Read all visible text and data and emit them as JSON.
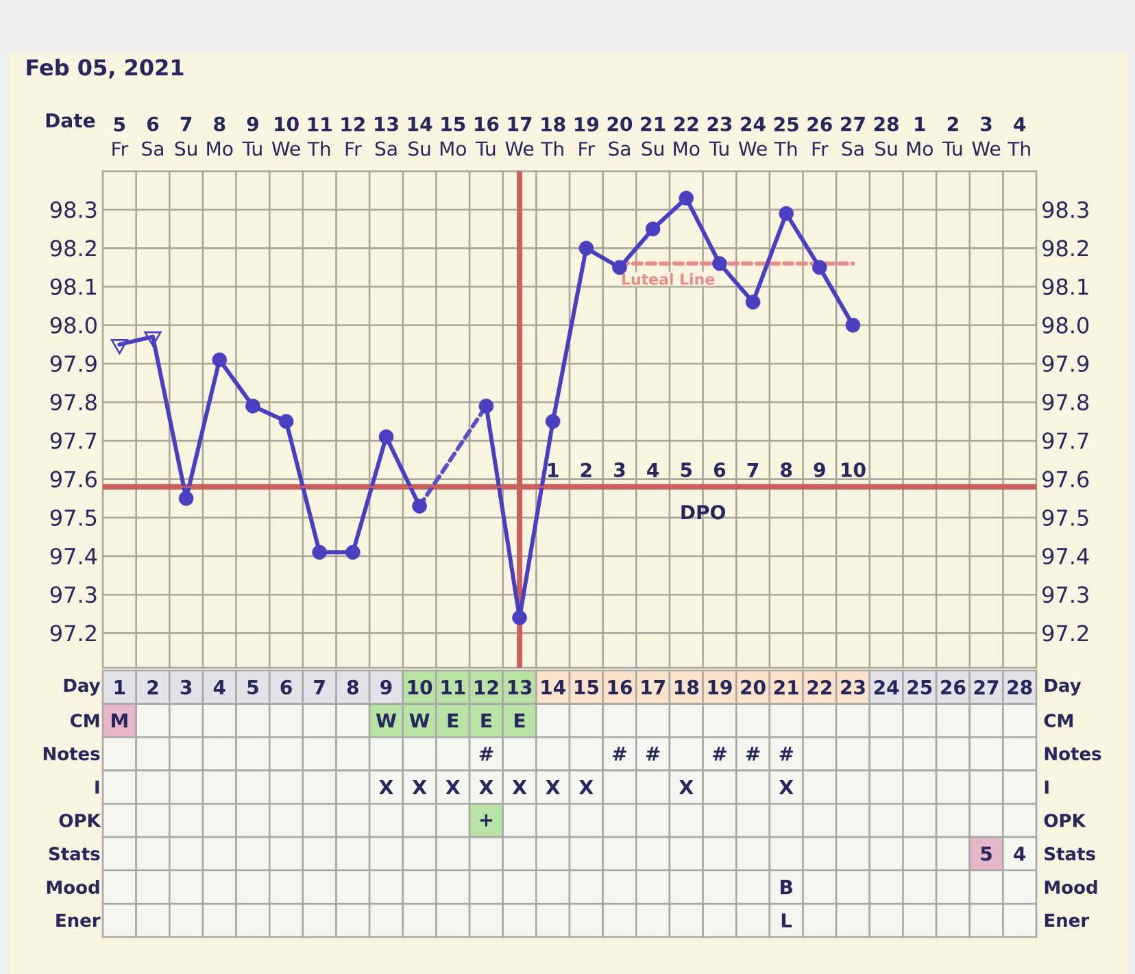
{
  "chart_data": [
    {
      "type": "line",
      "title": "Feb 05, 2021",
      "xlabel": "Date",
      "x": [
        "2021-02-05",
        "2021-02-06",
        "2021-02-07",
        "2021-02-08",
        "2021-02-09",
        "2021-02-10",
        "2021-02-11",
        "2021-02-12",
        "2021-02-13",
        "2021-02-14",
        "2021-02-15",
        "2021-02-16",
        "2021-02-17",
        "2021-02-18",
        "2021-02-19",
        "2021-02-20",
        "2021-02-21",
        "2021-02-22",
        "2021-02-23",
        "2021-02-24",
        "2021-02-25",
        "2021-02-26",
        "2021-02-27"
      ],
      "xlim": [
        "2021-02-04T12:00",
        "2021-03-04T12:00"
      ],
      "xticks": [
        {
          "value": "2021-02-05",
          "label": "**5** Fr"
        },
        {
          "value": "2021-02-06",
          "label": "**6** Sa"
        },
        {
          "value": "2021-02-07",
          "label": "**7** Su"
        },
        {
          "value": "2021-02-08",
          "label": "**8** Mo"
        },
        {
          "value": "2021-02-09",
          "label": "**9** Tu"
        },
        {
          "value": "2021-02-10",
          "label": "**10** We"
        },
        {
          "value": "2021-02-11",
          "label": "**11** Th"
        },
        {
          "value": "2021-02-12",
          "label": "**12** Fr"
        },
        {
          "value": "2021-02-13",
          "label": "**13** Sa"
        },
        {
          "value": "2021-02-14",
          "label": "**14** Su"
        },
        {
          "value": "2021-02-15",
          "label": "**15** Mo"
        },
        {
          "value": "2021-02-16",
          "label": "**16** Tu"
        },
        {
          "value": "2021-02-17",
          "label": "**17** We"
        },
        {
          "value": "2021-02-18",
          "label": "**18** Th"
        },
        {
          "value": "2021-02-19",
          "label": "**19** Fr"
        },
        {
          "value": "2021-02-20",
          "label": "**20** Sa"
        },
        {
          "value": "2021-02-21",
          "label": "**21** Su"
        },
        {
          "value": "2021-02-22",
          "label": "**22** Mo"
        },
        {
          "value": "2021-02-23",
          "label": "**23** Tu"
        },
        {
          "value": "2021-02-24",
          "label": "**24** We"
        },
        {
          "value": "2021-02-25",
          "label": "**25** Th"
        },
        {
          "value": "2021-02-26",
          "label": "**26** Fr"
        },
        {
          "value": "2021-02-27",
          "label": "**27** Sa"
        },
        {
          "value": "2021-02-28",
          "label": "**28** Su"
        },
        {
          "value": "2021-03-01",
          "label": "**1** Mo"
        },
        {
          "value": "2021-03-02",
          "label": "**2** Tu"
        },
        {
          "value": "2021-03-03",
          "label": "**3** We"
        },
        {
          "value": "2021-03-04",
          "label": "**4** Th"
        }
      ],
      "x2label": "DPO",
      "x2lim": [
        -12.5,
        15.5
      ],
      "x2ticks": [
        1,
        2,
        3,
        4,
        5,
        6,
        7,
        8,
        9,
        10
      ],
      "ylim": [
        97.11,
        98.4
      ],
      "yticks": [
        97.2,
        97.3,
        97.4,
        97.5,
        97.6,
        97.7,
        97.8,
        97.9,
        {
          "value": 98,
          "label": "98.0"
        },
        98.1,
        98.2,
        98.3
      ],
      "y2lim": [
        97.11,
        98.4
      ],
      "y2ticks": [
        97.2,
        97.3,
        97.4,
        97.5,
        97.6,
        97.7,
        97.8,
        97.9,
        {
          "value": 98,
          "label": "98.0"
        },
        98.1,
        98.2,
        98.3
      ],
      "grid": true,
      "series": [
        {
          "name": "Luteal Line",
          "type": "line",
          "color": "#e88c8a",
          "line_style": "dashed",
          "x": [
            "2021-02-20",
            "2021-02-27"
          ],
          "values": [
            98.16,
            98.16
          ]
        },
        {
          "type": "line",
          "color": "#4a3fbf",
          "values": [
            97.95,
            97.97,
            97.55,
            97.91,
            97.79,
            97.75,
            97.41,
            97.41,
            97.71,
            97.53,
            null,
            97.79,
            97.24,
            97.75,
            98.2,
            98.15,
            98.25,
            98.33,
            98.16,
            98.06,
            98.29,
            98.15,
            98.0
          ]
        },
        {
          "type": "line",
          "color": "#5a50c4",
          "line_style": "dashed",
          "x": [
            "2021-02-14",
            "2021-02-16"
          ],
          "values": [
            97.53,
            97.79
          ]
        },
        {
          "type": "scatter",
          "color": "#4a3fbf",
          "marker": "triangle",
          "x": [
            "2021-02-05",
            "2021-02-06"
          ],
          "values": [
            97.95,
            97.97
          ]
        },
        {
          "type": "scatter",
          "color": "#4a3fbf",
          "marker": "circle",
          "values": [
            null,
            null,
            97.55,
            97.91,
            97.79,
            97.75,
            97.41,
            97.41,
            97.71,
            97.53,
            null,
            97.79,
            97.24,
            97.75,
            98.2,
            98.15,
            98.25,
            98.33,
            98.16,
            98.06,
            98.29,
            98.15,
            98.0
          ]
        }
      ],
      "ref_lines": [
        {
          "axis": "y",
          "value": 97.58,
          "color": "#c9615e"
        },
        {
          "axis": "x",
          "value": "2021-02-17",
          "color": "#c9615e"
        }
      ]
    },
    {
      "type": "heatmap",
      "categories": [
        null,
        null,
        null,
        null,
        null,
        null,
        null,
        null,
        null,
        null,
        null,
        null,
        null,
        null,
        null,
        null,
        null,
        null,
        null,
        null,
        null,
        null,
        null,
        null,
        null,
        null,
        null,
        null
      ],
      "y_categories": [
        "Day",
        "CM",
        "Notes",
        "I",
        "OPK",
        "Stats",
        "Mood",
        "Ener"
      ],
      "y2_categories": [
        "Day",
        "CM",
        "Notes",
        "I",
        "OPK",
        "Stats",
        "Mood",
        "Ener"
      ],
      "color": "#f6f6f1",
      "cells": [
        [
          "1",
          "2",
          "3",
          "4",
          "5",
          "6",
          "7",
          "8",
          "9",
          "10",
          "11",
          "12",
          "13",
          "14",
          "15",
          "16",
          "17",
          "18",
          "19",
          "20",
          "21",
          "22",
          "23",
          "24",
          "25",
          "26",
          "27",
          "28"
        ],
        [
          "M",
          null,
          null,
          null,
          null,
          null,
          null,
          null,
          "W",
          "W",
          "E",
          "E",
          "E",
          null,
          null,
          null,
          null,
          null,
          null,
          null,
          null,
          null,
          null,
          null,
          null,
          null,
          null,
          null
        ],
        [
          null,
          null,
          null,
          null,
          null,
          null,
          null,
          null,
          null,
          null,
          null,
          "#",
          null,
          null,
          null,
          "#",
          "#",
          null,
          "#",
          "#",
          "#",
          null,
          null,
          null,
          null,
          null,
          null,
          null
        ],
        [
          null,
          null,
          null,
          null,
          null,
          null,
          null,
          null,
          "X",
          "X",
          "X",
          "X",
          "X",
          "X",
          "X",
          null,
          null,
          "X",
          null,
          null,
          "X",
          null,
          null,
          null,
          null,
          null,
          null,
          null
        ],
        [
          null,
          null,
          null,
          null,
          null,
          null,
          null,
          null,
          null,
          null,
          null,
          "+",
          null,
          null,
          null,
          null,
          null,
          null,
          null,
          null,
          null,
          null,
          null,
          null,
          null,
          null,
          null,
          null
        ],
        [
          null,
          null,
          null,
          null,
          null,
          null,
          null,
          null,
          null,
          null,
          null,
          null,
          null,
          null,
          null,
          null,
          null,
          null,
          null,
          null,
          null,
          null,
          null,
          null,
          null,
          null,
          "5",
          "4"
        ],
        [
          null,
          null,
          null,
          null,
          null,
          null,
          null,
          null,
          null,
          null,
          null,
          null,
          null,
          null,
          null,
          null,
          null,
          null,
          null,
          null,
          "B",
          null,
          null,
          null,
          null,
          null,
          null,
          null
        ],
        [
          null,
          null,
          null,
          null,
          null,
          null,
          null,
          null,
          null,
          null,
          null,
          null,
          null,
          null,
          null,
          null,
          null,
          null,
          null,
          null,
          "L",
          null,
          null,
          null,
          null,
          null,
          null,
          null
        ]
      ],
      "colors": [
        [
          "#e2e2e8",
          "#e2e2e8",
          "#e2e2e8",
          "#e2e2e8",
          "#e2e2e8",
          "#e2e2e8",
          "#e2e2e8",
          "#e2e2e8",
          "#e2e2e8",
          "#b8e3a4",
          "#b8e3a4",
          "#b8e3a4",
          "#b8e3a4",
          "#fbe3cb",
          "#fbe3cb",
          "#fbe3cb",
          "#fbe3cb",
          "#fbe3cb",
          "#fbe3cb",
          "#fbe3cb",
          "#fbe3cb",
          "#fbe3cb",
          "#fbe3cb",
          "#e2e2e8",
          "#e2e2e8",
          "#e2e2e8",
          "#e2e2e8",
          "#e2e2e8"
        ],
        [
          "#e8b6c9",
          null,
          null,
          null,
          null,
          null,
          null,
          null,
          "#b8e3a4",
          "#b8e3a4",
          "#b8e3a4",
          "#b8e3a4",
          "#b8e3a4",
          null,
          null,
          null,
          null,
          null,
          null,
          null,
          null,
          null,
          null,
          null,
          null,
          null,
          null,
          null
        ],
        [
          null,
          null,
          null,
          null,
          null,
          null,
          null,
          null,
          null,
          null,
          null,
          null,
          null,
          null,
          null,
          null,
          null,
          null,
          null,
          null,
          null,
          null,
          null,
          null,
          null,
          null,
          null,
          null
        ],
        [
          null,
          null,
          null,
          null,
          null,
          null,
          null,
          null,
          null,
          null,
          null,
          null,
          null,
          null,
          null,
          null,
          null,
          null,
          null,
          null,
          null,
          null,
          null,
          null,
          null,
          null,
          null,
          null
        ],
        [
          null,
          null,
          null,
          null,
          null,
          null,
          null,
          null,
          null,
          null,
          null,
          "#b8e3a4",
          null,
          null,
          null,
          null,
          null,
          null,
          null,
          null,
          null,
          null,
          null,
          null,
          null,
          null,
          null,
          null
        ],
        [
          null,
          null,
          null,
          null,
          null,
          null,
          null,
          null,
          null,
          null,
          null,
          null,
          null,
          null,
          null,
          null,
          null,
          null,
          null,
          null,
          null,
          null,
          null,
          null,
          null,
          null,
          "#e8b6c9",
          null
        ],
        [
          null,
          null,
          null,
          null,
          null,
          null,
          null,
          null,
          null,
          null,
          null,
          null,
          null,
          null,
          null,
          null,
          null,
          null,
          null,
          null,
          null,
          null,
          null,
          null,
          null,
          null,
          null,
          null
        ],
        [
          null,
          null,
          null,
          null,
          null,
          null,
          null,
          null,
          null,
          null,
          null,
          null,
          null,
          null,
          null,
          null,
          null,
          null,
          null,
          null,
          null,
          null,
          null,
          null,
          null,
          null,
          null,
          null
        ]
      ]
    }
  ]
}
